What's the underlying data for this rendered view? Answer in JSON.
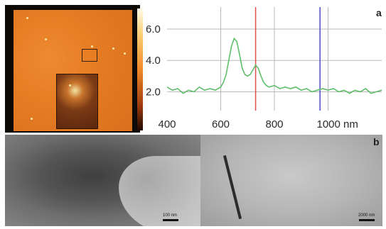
{
  "figure": {
    "panel_a_label": "a",
    "panel_b_label": "b",
    "tem_left_scale_label": "100 nm",
    "tem_right_scale_label": "2000 nm"
  },
  "colors": {
    "afm_orange": "#e67d24",
    "spectrum_line": "#5fbf6a",
    "red_marker": "#e05050",
    "blue_marker": "#4a4ad0",
    "grid": "#b9b9b9"
  },
  "chart_data": {
    "type": "line",
    "xlabel": "",
    "ylabel": "",
    "x_unit": "nm",
    "xlim": [
      400,
      1200
    ],
    "ylim": [
      0.8,
      7.4
    ],
    "yticks": [
      2.0,
      4.0,
      6.0
    ],
    "ytick_labels": [
      "2.0",
      "4.0",
      "6.0"
    ],
    "xticks": [
      400,
      600,
      800,
      1000
    ],
    "xtick_labels": [
      "400",
      "600",
      "800",
      "1000 nm"
    ],
    "grid": true,
    "markers": [
      {
        "x": 730,
        "color": "#e05050"
      },
      {
        "x": 970,
        "color": "#4a4ad0"
      }
    ],
    "series": [
      {
        "x": [
          400,
          420,
          440,
          460,
          480,
          500,
          520,
          540,
          560,
          580,
          600,
          610,
          620,
          630,
          640,
          650,
          660,
          670,
          680,
          690,
          700,
          710,
          720,
          730,
          740,
          750,
          760,
          770,
          780,
          800,
          820,
          840,
          860,
          880,
          900,
          920,
          940,
          960,
          980,
          1000,
          1020,
          1040,
          1060,
          1080,
          1100,
          1120,
          1140,
          1160,
          1180,
          1200
        ],
        "values": [
          2.3,
          2.1,
          2.2,
          1.9,
          2.1,
          2.0,
          2.3,
          2.1,
          2.2,
          2.1,
          2.3,
          2.6,
          3.1,
          4.0,
          4.9,
          5.4,
          5.2,
          4.4,
          3.5,
          3.1,
          3.0,
          3.1,
          3.4,
          3.7,
          3.5,
          3.0,
          2.6,
          2.4,
          2.3,
          2.4,
          2.2,
          2.3,
          2.2,
          2.3,
          2.1,
          2.2,
          2.0,
          2.1,
          2.2,
          2.1,
          2.2,
          2.0,
          2.1,
          1.9,
          2.1,
          2.0,
          2.2,
          1.9,
          2.0,
          2.1
        ]
      }
    ]
  }
}
